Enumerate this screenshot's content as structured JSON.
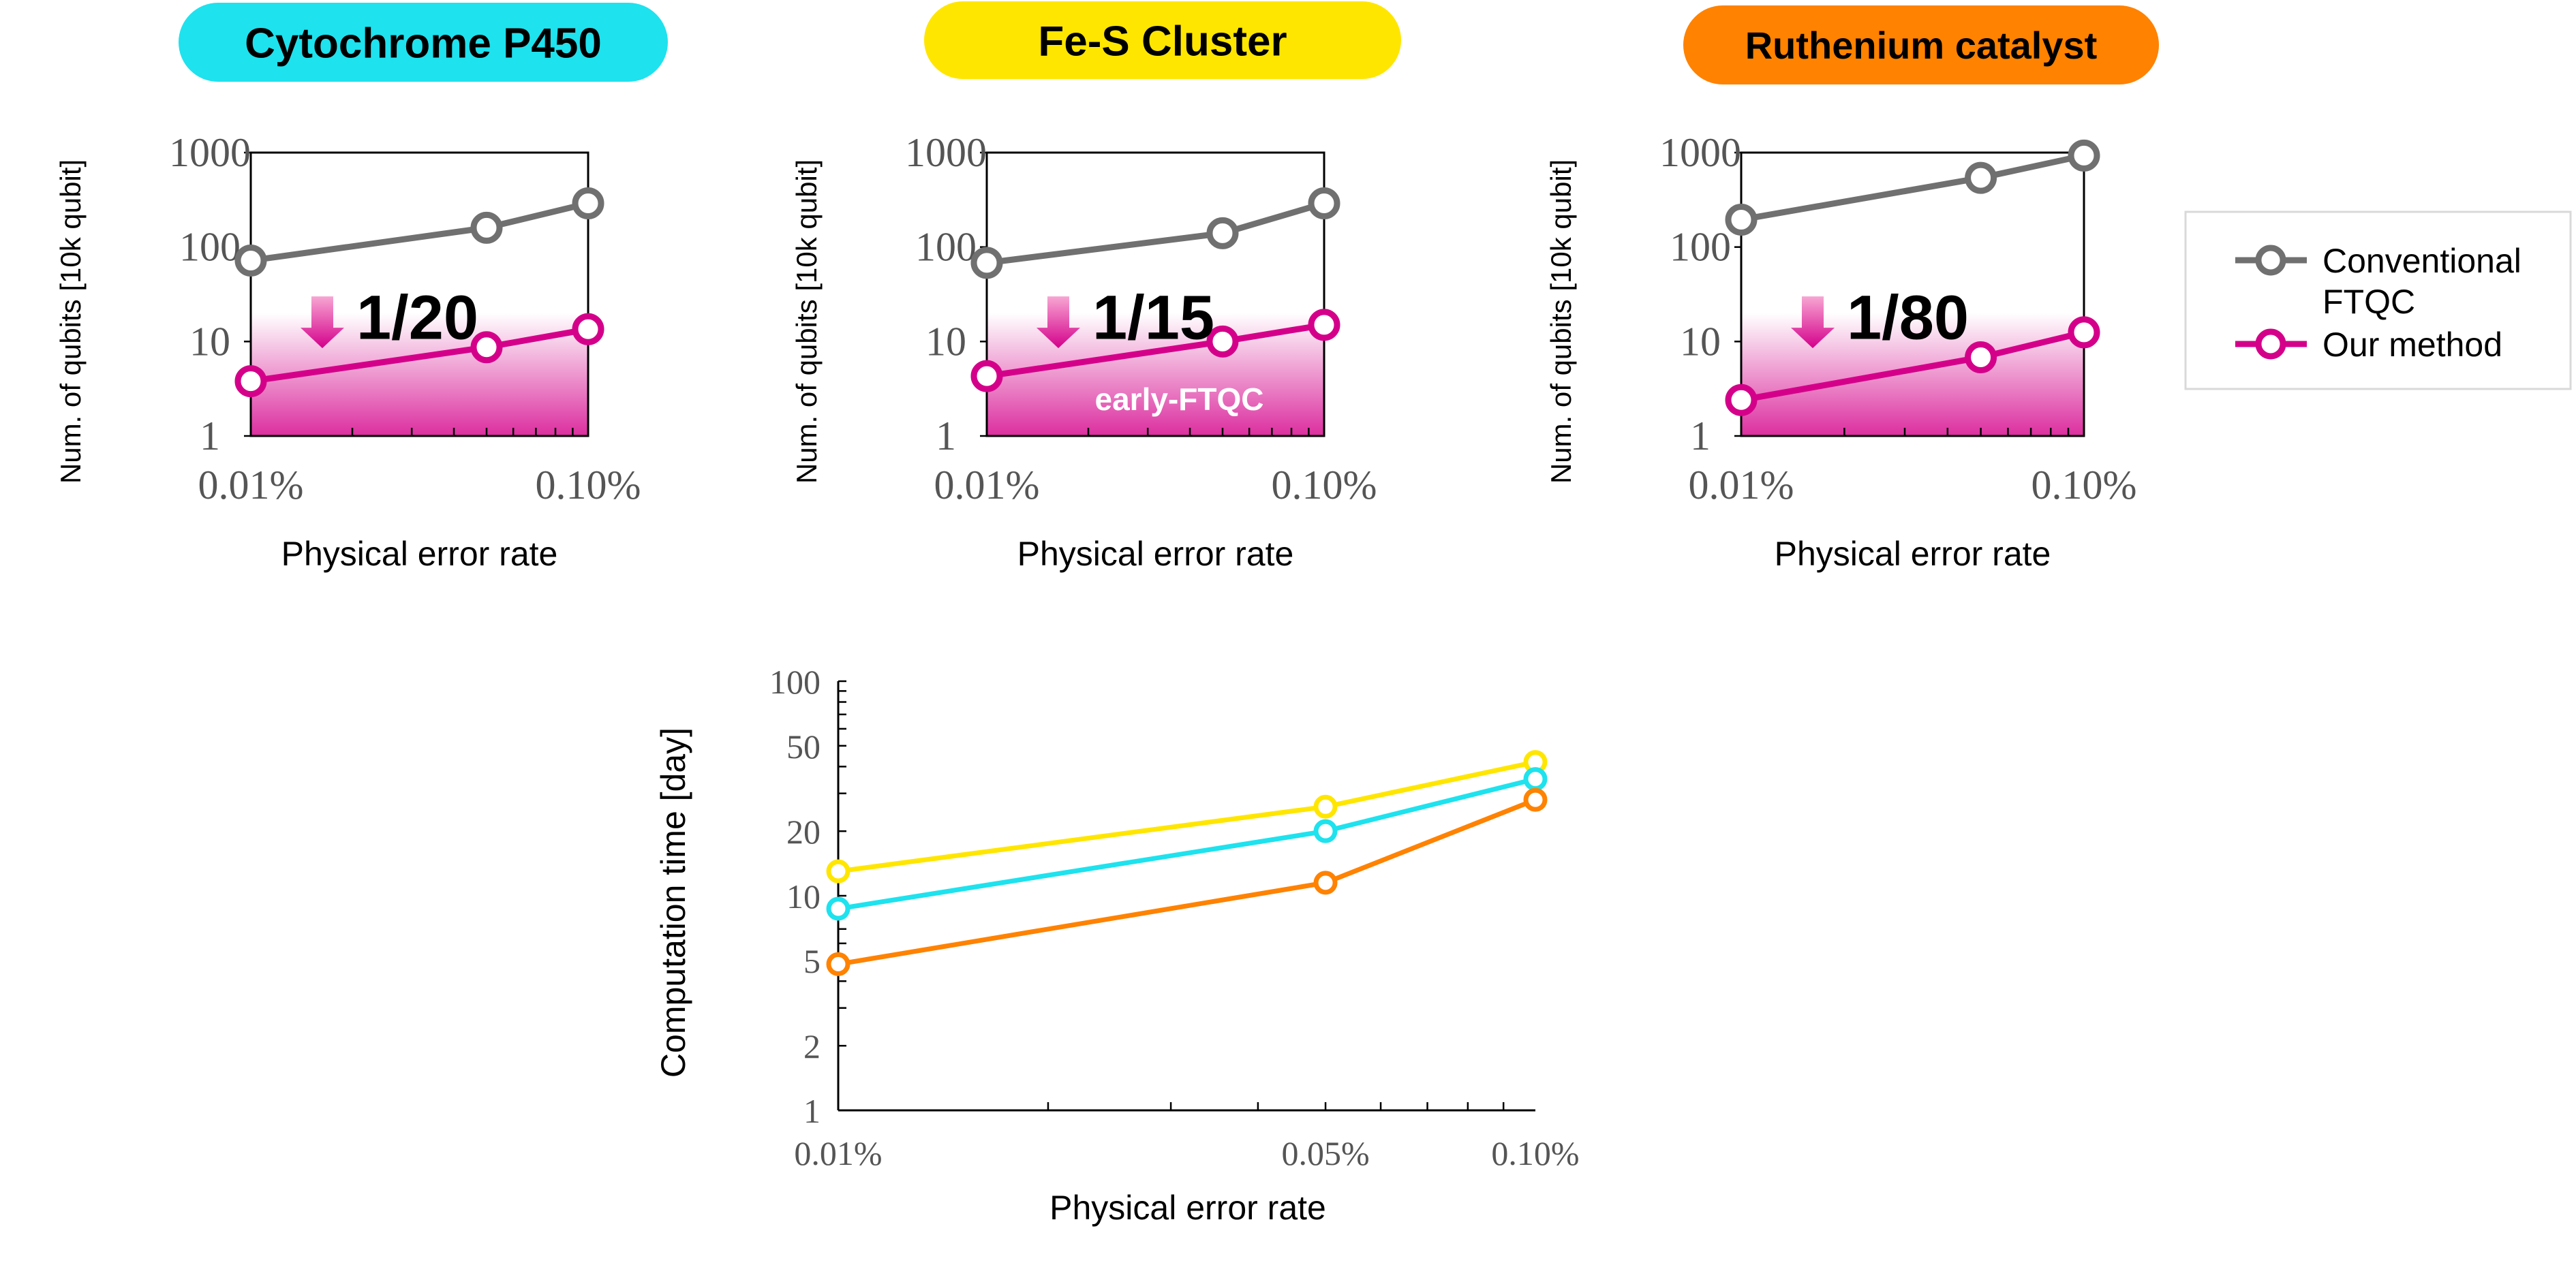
{
  "colors": {
    "conventional": "#707070",
    "our_method": "#d4008a",
    "cytochrome": "#1ee2ee",
    "fes": "#ffe600",
    "ruthenium": "#ff8200",
    "axis": "#000000"
  },
  "legend": {
    "conventional_line1": "Conventional",
    "conventional_line2": "FTQC",
    "our_method": "Our method"
  },
  "chart_data": [
    {
      "type": "line",
      "title": "Cytochrome P450",
      "title_color": "#1ee2ee",
      "ylabel": "Num. of qubits [10k qubit]",
      "xlabel": "Physical error rate",
      "x_scale": "log",
      "y_scale": "log",
      "xlim": [
        0.01,
        0.1
      ],
      "ylim": [
        1,
        1000
      ],
      "x_ticks": [
        "0.01%",
        "0.10%"
      ],
      "y_ticks": [
        "1000",
        "100",
        "10",
        "1"
      ],
      "annotation": "1/20",
      "shaded_label": "",
      "series": [
        {
          "name": "Conventional FTQC",
          "x": [
            0.01,
            0.05,
            0.1
          ],
          "y": [
            72,
            160,
            290
          ]
        },
        {
          "name": "Our method",
          "x": [
            0.01,
            0.05,
            0.1
          ],
          "y": [
            3.8,
            8.7,
            13.5
          ]
        }
      ]
    },
    {
      "type": "line",
      "title": "Fe-S Cluster",
      "title_color": "#ffe600",
      "ylabel": "Num. of qubits [10k qubit]",
      "xlabel": "Physical error rate",
      "x_scale": "log",
      "y_scale": "log",
      "xlim": [
        0.01,
        0.1
      ],
      "ylim": [
        1,
        1000
      ],
      "x_ticks": [
        "0.01%",
        "0.10%"
      ],
      "y_ticks": [
        "1000",
        "100",
        "10",
        "1"
      ],
      "annotation": "1/15",
      "shaded_label": "early-FTQC",
      "series": [
        {
          "name": "Conventional FTQC",
          "x": [
            0.01,
            0.05,
            0.1
          ],
          "y": [
            68,
            140,
            290
          ]
        },
        {
          "name": "Our method",
          "x": [
            0.01,
            0.05,
            0.1
          ],
          "y": [
            4.3,
            10,
            15
          ]
        }
      ]
    },
    {
      "type": "line",
      "title": "Ruthenium catalyst",
      "title_color": "#ff8200",
      "ylabel": "Num. of qubits [10k qubit]",
      "xlabel": "Physical error rate",
      "x_scale": "log",
      "y_scale": "log",
      "xlim": [
        0.01,
        0.1
      ],
      "ylim": [
        1,
        1000
      ],
      "x_ticks": [
        "0.01%",
        "0.10%"
      ],
      "y_ticks": [
        "1000",
        "100",
        "10",
        "1"
      ],
      "annotation": "1/80",
      "shaded_label": "",
      "series": [
        {
          "name": "Conventional FTQC",
          "x": [
            0.01,
            0.05,
            0.1
          ],
          "y": [
            195,
            540,
            930
          ]
        },
        {
          "name": "Our method",
          "x": [
            0.01,
            0.05,
            0.1
          ],
          "y": [
            2.4,
            6.8,
            12.5
          ]
        }
      ]
    },
    {
      "type": "line",
      "title": "",
      "ylabel": "Computation time [day]",
      "xlabel": "Physical error rate",
      "x_scale": "log",
      "y_scale": "log",
      "xlim": [
        0.01,
        0.1
      ],
      "ylim": [
        1,
        100
      ],
      "x_ticks": [
        {
          "value": 0.01,
          "label": "0.01%"
        },
        {
          "value": 0.05,
          "label": "0.05%"
        },
        {
          "value": 0.1,
          "label": "0.10%"
        }
      ],
      "y_ticks": [
        {
          "value": 100,
          "label": "100"
        },
        {
          "value": 50,
          "label": "50"
        },
        {
          "value": 20,
          "label": "20"
        },
        {
          "value": 10,
          "label": "10"
        },
        {
          "value": 5,
          "label": "5"
        },
        {
          "value": 2,
          "label": "2"
        },
        {
          "value": 1,
          "label": "1"
        }
      ],
      "series": [
        {
          "color": "#ffe600",
          "x": [
            0.01,
            0.05,
            0.1
          ],
          "y": [
            13,
            26,
            42
          ]
        },
        {
          "color": "#1ee2ee",
          "x": [
            0.01,
            0.05,
            0.1
          ],
          "y": [
            8.7,
            20,
            35
          ]
        },
        {
          "color": "#ff8200",
          "x": [
            0.01,
            0.05,
            0.1
          ],
          "y": [
            4.8,
            11.5,
            28
          ]
        }
      ]
    }
  ]
}
